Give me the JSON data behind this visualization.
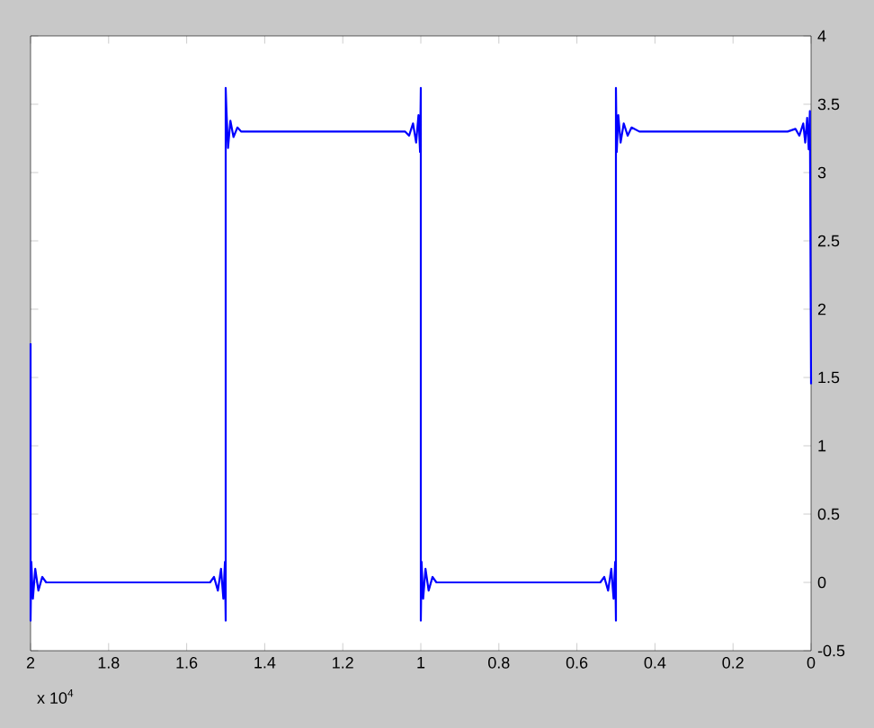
{
  "chart_data": {
    "type": "line",
    "xlim": [
      2,
      0
    ],
    "ylim": [
      -0.5,
      4
    ],
    "xticks": [
      0,
      0.2,
      0.4,
      0.6,
      0.8,
      1,
      1.2,
      1.4,
      1.6,
      1.8,
      2
    ],
    "yticks": [
      -0.5,
      0,
      0.5,
      1,
      1.5,
      2,
      2.5,
      3,
      3.5,
      4
    ],
    "annotations": [
      "x 10$^{4}$"
    ],
    "series": [
      {
        "color": "#0000ff",
        "x": [
          0,
          0.003,
          0.006,
          0.01,
          0.015,
          0.02,
          0.03,
          0.04,
          0.06,
          0.44,
          0.46,
          0.47,
          0.48,
          0.488,
          0.494,
          0.498,
          0.5,
          0.5,
          0.502,
          0.506,
          0.512,
          0.52,
          0.53,
          0.54,
          0.96,
          0.97,
          0.98,
          0.988,
          0.994,
          0.998,
          1,
          1,
          1.002,
          1.006,
          1.012,
          1.02,
          1.03,
          1.04,
          1.46,
          1.47,
          1.48,
          1.488,
          1.494,
          1.498,
          1.5,
          1.5,
          1.502,
          1.506,
          1.512,
          1.52,
          1.53,
          1.54,
          1.96,
          1.97,
          1.98,
          1.988,
          1.994,
          1.998,
          2,
          2
        ],
        "values": [
          1.45,
          3.45,
          3.17,
          3.4,
          3.22,
          3.36,
          3.27,
          3.32,
          3.3,
          3.3,
          3.33,
          3.27,
          3.36,
          3.22,
          3.42,
          3.15,
          3.62,
          -0.28,
          0.15,
          -0.12,
          0.1,
          -0.06,
          0.04,
          0,
          0,
          0.04,
          -0.06,
          0.1,
          -0.12,
          0.15,
          -0.28,
          3.62,
          3.15,
          3.42,
          3.22,
          3.36,
          3.27,
          3.3,
          3.3,
          3.33,
          3.26,
          3.38,
          3.18,
          3.45,
          3.62,
          -0.28,
          0.15,
          -0.12,
          0.1,
          -0.06,
          0.04,
          0,
          0,
          0.04,
          -0.06,
          0.1,
          -0.12,
          0.15,
          -0.28,
          1.75
        ]
      }
    ]
  }
}
